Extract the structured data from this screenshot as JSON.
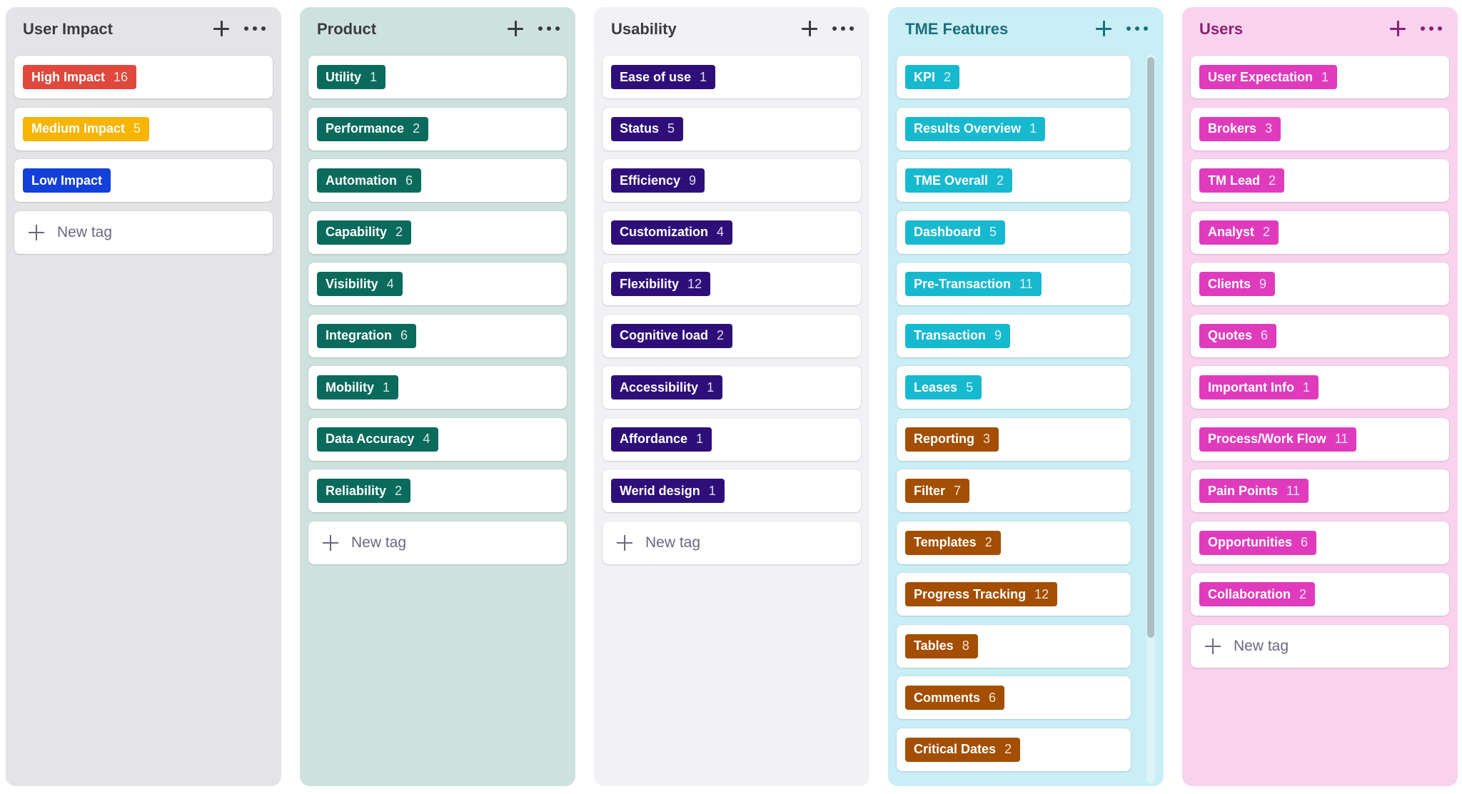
{
  "columns": [
    {
      "id": "user-impact",
      "title": "User Impact",
      "bg": "#e4e4e6",
      "header_color": "#3a3a3f",
      "new_tag_label": "New tag",
      "tags": [
        {
          "label": "High Impact",
          "count": "16",
          "color": "#e0483d"
        },
        {
          "label": "Medium Impact",
          "count": "5",
          "color": "#f7b400"
        },
        {
          "label": "Low Impact",
          "count": "",
          "color": "#1240d9"
        }
      ]
    },
    {
      "id": "product",
      "title": "Product",
      "bg": "#cde2df",
      "header_color": "#3a3a3f",
      "new_tag_label": "New tag",
      "tags": [
        {
          "label": "Utility",
          "count": "1",
          "color": "#0a6a5c"
        },
        {
          "label": "Performance",
          "count": "2",
          "color": "#0a6a5c"
        },
        {
          "label": "Automation",
          "count": "6",
          "color": "#0a6a5c"
        },
        {
          "label": "Capability",
          "count": "2",
          "color": "#0a6a5c"
        },
        {
          "label": "Visibility",
          "count": "4",
          "color": "#0a6a5c"
        },
        {
          "label": "Integration",
          "count": "6",
          "color": "#0a6a5c"
        },
        {
          "label": "Mobility",
          "count": "1",
          "color": "#0a6a5c"
        },
        {
          "label": "Data Accuracy",
          "count": "4",
          "color": "#0a6a5c"
        },
        {
          "label": "Reliability",
          "count": "2",
          "color": "#0a6a5c"
        }
      ]
    },
    {
      "id": "usability",
      "title": "Usability",
      "bg": "#f2f2f6",
      "header_color": "#3a3a3f",
      "new_tag_label": "New tag",
      "tags": [
        {
          "label": "Ease of use",
          "count": "1",
          "color": "#2e0f7a"
        },
        {
          "label": "Status",
          "count": "5",
          "color": "#2e0f7a"
        },
        {
          "label": "Efficiency",
          "count": "9",
          "color": "#2e0f7a"
        },
        {
          "label": "Customization",
          "count": "4",
          "color": "#2e0f7a"
        },
        {
          "label": "Flexibility",
          "count": "12",
          "color": "#2e0f7a"
        },
        {
          "label": "Cognitive load",
          "count": "2",
          "color": "#2e0f7a"
        },
        {
          "label": "Accessibility",
          "count": "1",
          "color": "#2e0f7a"
        },
        {
          "label": "Affordance",
          "count": "1",
          "color": "#2e0f7a"
        },
        {
          "label": "Werid design",
          "count": "1",
          "color": "#2e0f7a"
        }
      ]
    },
    {
      "id": "tme-features",
      "title": "TME Features",
      "bg": "#c9eef5",
      "header_color": "#1c6f7c",
      "new_tag_label": "New tag",
      "tags": [
        {
          "label": "KPI",
          "count": "2",
          "color": "#17b9cf"
        },
        {
          "label": "Results Overview",
          "count": "1",
          "color": "#17b9cf"
        },
        {
          "label": "TME Overall",
          "count": "2",
          "color": "#17b9cf"
        },
        {
          "label": "Dashboard",
          "count": "5",
          "color": "#17b9cf"
        },
        {
          "label": "Pre-Transaction",
          "count": "11",
          "color": "#17b9cf"
        },
        {
          "label": "Transaction",
          "count": "9",
          "color": "#17b9cf"
        },
        {
          "label": "Leases",
          "count": "5",
          "color": "#17b9cf"
        },
        {
          "label": "Reporting",
          "count": "3",
          "color": "#a34e00"
        },
        {
          "label": "Filter",
          "count": "7",
          "color": "#a34e00"
        },
        {
          "label": "Templates",
          "count": "2",
          "color": "#a34e00"
        },
        {
          "label": "Progress Tracking",
          "count": "12",
          "color": "#a34e00"
        },
        {
          "label": "Tables",
          "count": "8",
          "color": "#a34e00"
        },
        {
          "label": "Comments",
          "count": "6",
          "color": "#a34e00"
        },
        {
          "label": "Critical Dates",
          "count": "2",
          "color": "#a34e00"
        }
      ]
    },
    {
      "id": "users",
      "title": "Users",
      "bg": "#f9d3ee",
      "header_color": "#8c1e74",
      "new_tag_label": "New tag",
      "tags": [
        {
          "label": "User Expectation",
          "count": "1",
          "color": "#e03bbd"
        },
        {
          "label": "Brokers",
          "count": "3",
          "color": "#e03bbd"
        },
        {
          "label": "TM Lead",
          "count": "2",
          "color": "#e03bbd"
        },
        {
          "label": "Analyst",
          "count": "2",
          "color": "#e03bbd"
        },
        {
          "label": "Clients",
          "count": "9",
          "color": "#e03bbd"
        },
        {
          "label": "Quotes",
          "count": "6",
          "color": "#e03bbd"
        },
        {
          "label": "Important Info",
          "count": "1",
          "color": "#e03bbd"
        },
        {
          "label": "Process/Work Flow",
          "count": "11",
          "color": "#e03bbd"
        },
        {
          "label": "Pain Points",
          "count": "11",
          "color": "#e03bbd"
        },
        {
          "label": "Opportunities",
          "count": "6",
          "color": "#e03bbd"
        },
        {
          "label": "Collaboration",
          "count": "2",
          "color": "#e03bbd"
        }
      ]
    }
  ],
  "icons": {
    "add": "plus-icon",
    "more": "more-horizontal-icon",
    "new_tag": "plus-icon"
  }
}
